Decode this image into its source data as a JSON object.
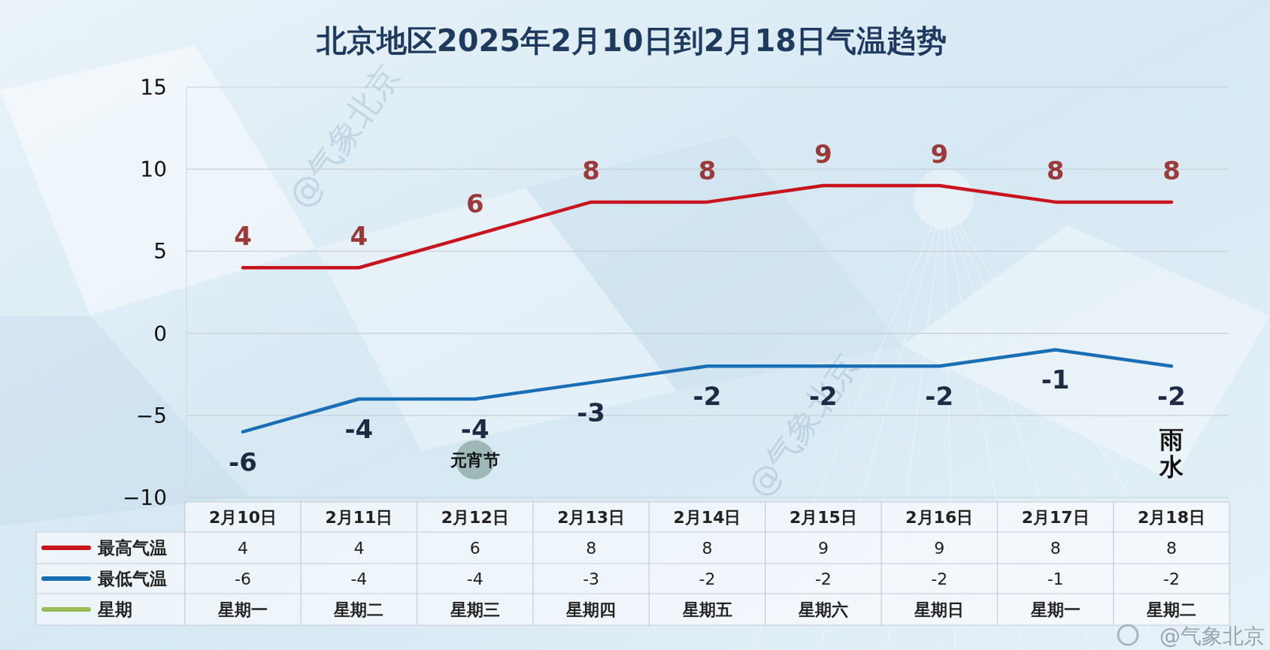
{
  "chart_data": {
    "type": "line",
    "title": "北京地区2025年2月10日到2月18日气温趋势",
    "categories": [
      "2月10日",
      "2月11日",
      "2月12日",
      "2月13日",
      "2月14日",
      "2月15日",
      "2月16日",
      "2月17日",
      "2月18日"
    ],
    "series": [
      {
        "name": "最高气温",
        "color": "#c8141e",
        "values": [
          4,
          4,
          6,
          8,
          8,
          9,
          9,
          8,
          8
        ]
      },
      {
        "name": "最低气温",
        "color": "#1a6fb5",
        "values": [
          -6,
          -4,
          -4,
          -3,
          -2,
          -2,
          -2,
          -1,
          -2
        ]
      }
    ],
    "weekday_row": {
      "name": "星期",
      "color": "#9bbb59",
      "values": [
        "星期一",
        "星期二",
        "星期三",
        "星期四",
        "星期五",
        "星期六",
        "星期日",
        "星期一",
        "星期二"
      ]
    },
    "ylim": [
      -10,
      15
    ],
    "yticks": [
      {
        "value": -10,
        "label": "−10"
      },
      {
        "value": -5,
        "label": "−5"
      },
      0,
      5,
      10,
      15
    ],
    "grid": true,
    "data_labels": true,
    "annotations": [
      {
        "text": "元宵节",
        "category": 2
      },
      {
        "text": "雨水",
        "category": 8
      }
    ],
    "watermark": "@气象北京",
    "source": "@气象北京"
  }
}
